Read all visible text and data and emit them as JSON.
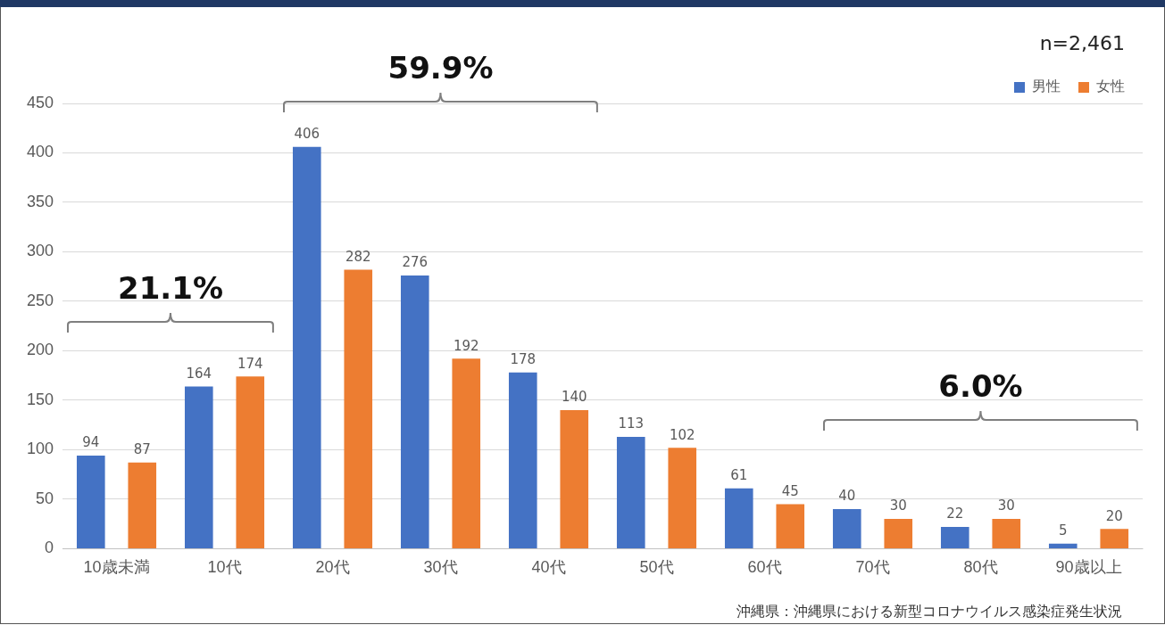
{
  "chart_data": {
    "type": "bar",
    "categories": [
      "10歳未満",
      "10代",
      "20代",
      "30代",
      "40代",
      "50代",
      "60代",
      "70代",
      "80代",
      "90歳以上"
    ],
    "series": [
      {
        "name": "男性",
        "color": "#4472c4",
        "values": [
          94,
          164,
          406,
          276,
          178,
          113,
          61,
          40,
          22,
          5
        ]
      },
      {
        "name": "女性",
        "color": "#ed7d31",
        "values": [
          87,
          174,
          282,
          192,
          140,
          102,
          45,
          30,
          30,
          20
        ]
      }
    ],
    "ylim": [
      0,
      450
    ],
    "yticks": [
      0,
      50,
      100,
      150,
      200,
      250,
      300,
      350,
      400,
      450
    ],
    "grid": "y",
    "legend": "top right",
    "data_labels": true,
    "annotations": [
      "21.1%",
      "59.9%",
      "6.0%",
      "n=2,461",
      "沖縄県：沖縄県における新型コロナウイルス感染症発生状況"
    ]
  }
}
